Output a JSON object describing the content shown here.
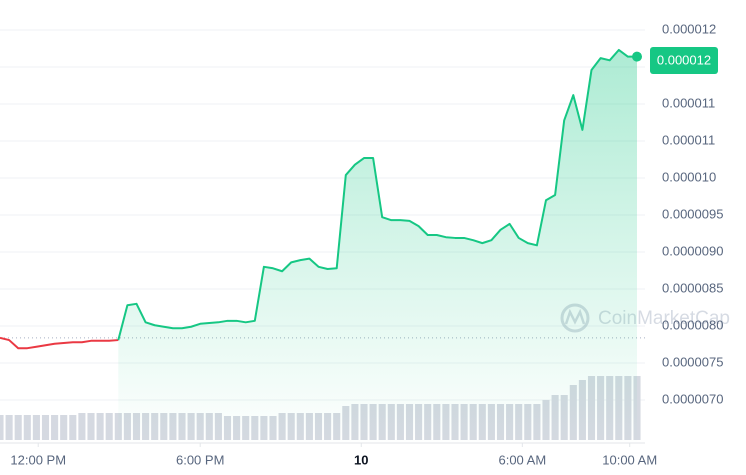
{
  "chart_data": {
    "type": "line",
    "color": "#16c784",
    "down_color": "#ea3943",
    "volume_color": "#d5d9e1",
    "watermark": "CoinMarketCap",
    "current_price_label": "0.000012",
    "xlim": [
      0,
      70
    ],
    "xticks": [
      {
        "value": 4.2,
        "label": "12:00 PM"
      },
      {
        "value": 22,
        "label": "6:00 PM"
      },
      {
        "value": 39.7,
        "label": "10"
      },
      {
        "value": 57.4,
        "label": "6:00 AM"
      },
      {
        "value": 69.2,
        "label": "10:00 AM"
      }
    ],
    "ylim": [
      6.4e-06,
      1.22e-05
    ],
    "yticks": [
      {
        "value": 7e-06,
        "label": "0.0000070"
      },
      {
        "value": 7.5e-06,
        "label": "0.0000075"
      },
      {
        "value": 8e-06,
        "label": "0.0000080"
      },
      {
        "value": 8.5e-06,
        "label": "0.0000085"
      },
      {
        "value": 9e-06,
        "label": "0.0000090"
      },
      {
        "value": 9.5e-06,
        "label": "0.0000095"
      },
      {
        "value": 1e-05,
        "label": "0.000010"
      },
      {
        "value": 1.05e-05,
        "label": "0.000011"
      },
      {
        "value": 1.1e-05,
        "label": "0.000011"
      },
      {
        "value": 1.15e-05,
        "label": "0.000012"
      },
      {
        "value": 1.2e-05,
        "label": "0.000012"
      }
    ],
    "grid": true,
    "values": [
      7.84e-06,
      7.81e-06,
      7.7e-06,
      7.7e-06,
      7.72e-06,
      7.74e-06,
      7.76e-06,
      7.77e-06,
      7.78e-06,
      7.78e-06,
      7.8e-06,
      7.8e-06,
      7.8e-06,
      7.81e-06,
      8.28e-06,
      8.3e-06,
      8.05e-06,
      8.01e-06,
      7.99e-06,
      7.97e-06,
      7.97e-06,
      7.99e-06,
      8.03e-06,
      8.04e-06,
      8.05e-06,
      8.07e-06,
      8.07e-06,
      8.05e-06,
      8.07e-06,
      8.8e-06,
      8.78e-06,
      8.74e-06,
      8.86e-06,
      8.89e-06,
      8.91e-06,
      8.8e-06,
      8.77e-06,
      8.78e-06,
      1.004e-05,
      1.018e-05,
      1.027e-05,
      1.027e-05,
      9.47e-06,
      9.43e-06,
      9.43e-06,
      9.42e-06,
      9.35e-06,
      9.23e-06,
      9.23e-06,
      9.2e-06,
      9.19e-06,
      9.19e-06,
      9.16e-06,
      9.12e-06,
      9.16e-06,
      9.3e-06,
      9.38e-06,
      9.19e-06,
      9.12e-06,
      9.09e-06,
      9.7e-06,
      9.77e-06,
      1.078e-05,
      1.112e-05,
      1.065e-05,
      1.146e-05,
      1.162e-05,
      1.159e-05,
      1.173e-05,
      1.164e-05,
      1.164e-05
    ],
    "volume_lim": [
      0,
      100
    ],
    "volume": [
      25,
      25,
      25,
      25,
      25,
      25,
      25,
      25,
      25,
      27,
      27,
      27,
      27,
      27,
      27,
      27,
      27,
      27,
      27,
      27,
      27,
      27,
      27,
      27,
      27,
      24,
      24,
      24,
      24,
      24,
      24,
      27,
      27,
      27,
      27,
      27,
      27,
      27,
      34,
      36,
      36,
      36,
      36,
      36,
      36,
      36,
      36,
      36,
      36,
      36,
      36,
      36,
      36,
      36,
      36,
      36,
      36,
      36,
      36,
      36,
      40,
      45,
      45,
      55,
      60,
      64,
      64,
      64,
      64,
      64,
      64
    ]
  }
}
